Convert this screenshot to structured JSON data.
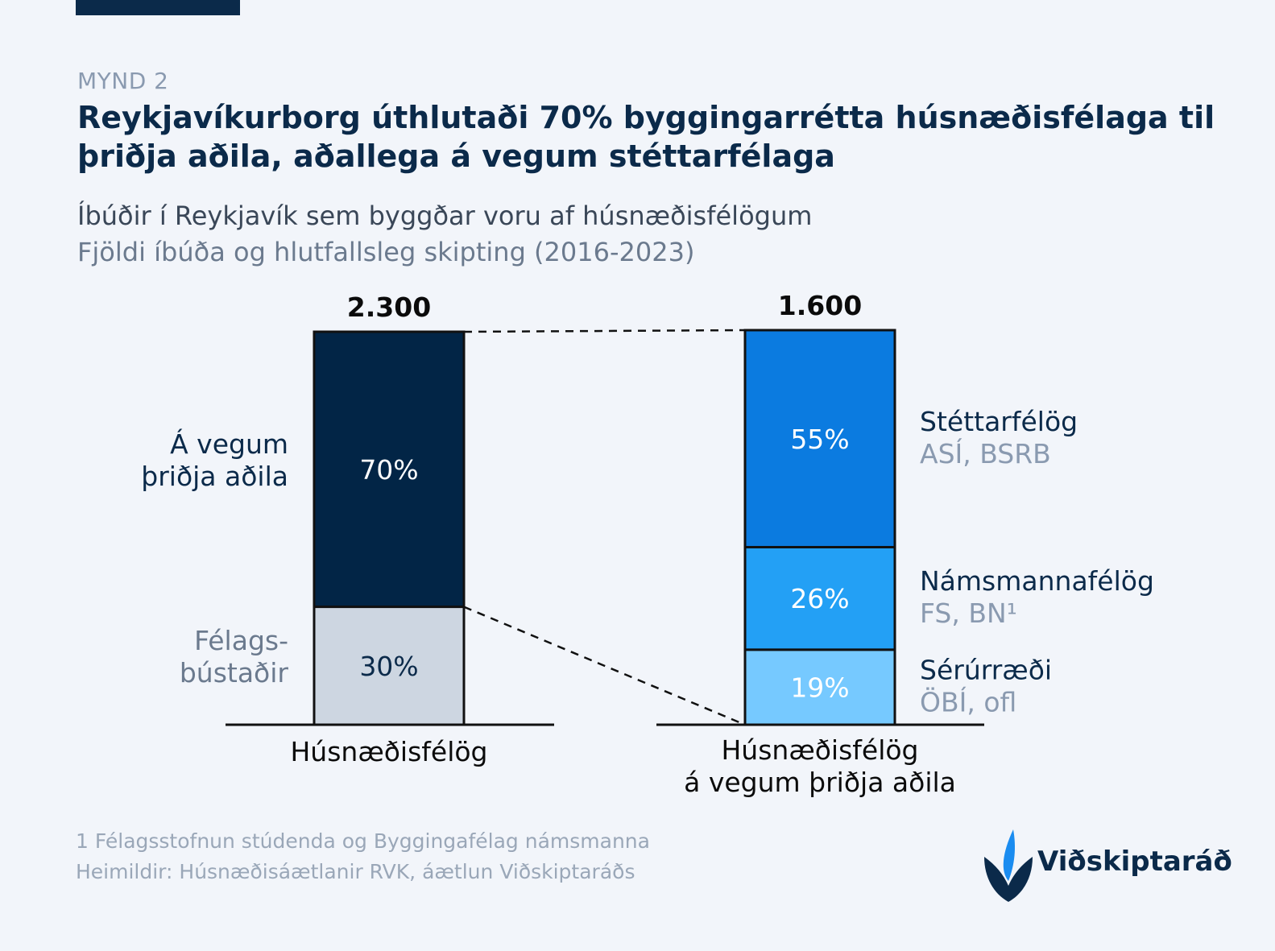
{
  "header": {
    "kicker": "MYND 2",
    "title": "Reykjavíkurborg úthlutaði 70% byggingarrétta húsnæðisfélaga til þriðja aðila, aðallega á vegum stéttarfélaga",
    "subtitle_line1": "Íbúðir í Reykjavík sem byggðar voru af húsnæðisfélögum",
    "subtitle_line2": "Fjöldi íbúða og hlutfallsleg skipting (2016-2023)"
  },
  "chart_data": [
    {
      "type": "bar",
      "stacked": true,
      "category": "Húsnæðisfélög",
      "total_label": "2.300",
      "total": 2300,
      "segments": [
        {
          "name_lines": [
            "Á vegum",
            "þriðja aðila"
          ],
          "value": 70,
          "label": "70%",
          "color": "#022546",
          "text_color": "#ffffff"
        },
        {
          "name_lines": [
            "Félags-",
            "bústaðir"
          ],
          "value": 30,
          "label": "30%",
          "color": "#cdd6e1",
          "text_color": "#0b2a4a"
        }
      ]
    },
    {
      "type": "bar",
      "stacked": true,
      "category_lines": [
        "Húsnæðisfélög",
        "á vegum þriðja aðila"
      ],
      "total_label": "1.600",
      "total": 1600,
      "segments": [
        {
          "name": "Stéttarfélög",
          "sub": "ASÍ, BSRB",
          "value": 55,
          "label": "55%",
          "color": "#0b7be0",
          "text_color": "#ffffff"
        },
        {
          "name": "Námsmannafélög",
          "sub": "FS, BN¹",
          "value": 26,
          "label": "26%",
          "color": "#23a0f5",
          "text_color": "#ffffff"
        },
        {
          "name": "Sérúrræði",
          "sub": "ÖBÍ, ofl",
          "value": 19,
          "label": "19%",
          "color": "#76c9ff",
          "text_color": "#ffffff"
        }
      ]
    }
  ],
  "footer": {
    "note": "1 Félagsstofnun stúdenda og Byggingafélag námsmanna",
    "source": "Heimildir: Húsnæðisáætlanir RVK, áætlun Viðskiptaráðs"
  },
  "logo": {
    "text": "Viðskiptaráð"
  },
  "colors": {
    "dark_navy": "#0b2a4a",
    "bar_outline": "#111111"
  }
}
